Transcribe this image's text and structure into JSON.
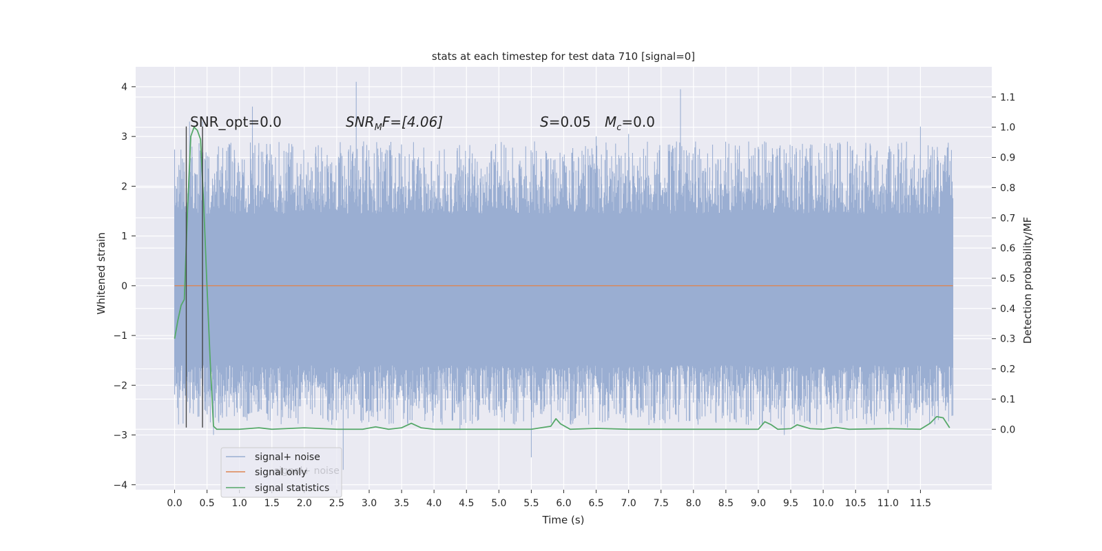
{
  "chart_data": {
    "type": "line",
    "title": "stats at each timestep for test data 710 [signal=0]",
    "xlabel": "Time (s)",
    "ylabel": "Whitened strain",
    "ylabel_right": "Detection probability/MF",
    "xlim": [
      -0.6,
      12.6
    ],
    "ylim": [
      -4.1,
      4.4
    ],
    "ylim_right": [
      -0.2,
      1.2
    ],
    "x_ticks": [
      0.0,
      0.5,
      1.0,
      1.5,
      2.0,
      2.5,
      3.0,
      3.5,
      4.0,
      4.5,
      5.0,
      5.5,
      6.0,
      6.5,
      7.0,
      7.5,
      8.0,
      8.5,
      9.0,
      9.5,
      10.0,
      10.5,
      11.0,
      11.5
    ],
    "x_tick_labels": [
      "0.0",
      "0.5",
      "1.0",
      "1.5",
      "2.0",
      "2.5",
      "3.0",
      "3.5",
      "4.0",
      "4.5",
      "5.0",
      "5.5",
      "6.0",
      "6.5",
      "7.0",
      "7.5",
      "8.0",
      "8.5",
      "9.0",
      "9.5",
      "10.0",
      "10.5",
      "11.0",
      "11.5"
    ],
    "y_ticks": [
      -4,
      -3,
      -2,
      -1,
      0,
      1,
      2,
      3,
      4
    ],
    "y_tick_labels": [
      "−4",
      "−3",
      "−2",
      "−1",
      "0",
      "1",
      "2",
      "3",
      "4"
    ],
    "y_right_ticks": [
      0.0,
      0.1,
      0.2,
      0.3,
      0.4,
      0.5,
      0.6,
      0.7,
      0.8,
      0.9,
      1.0,
      1.1
    ],
    "y_right_tick_labels": [
      "0.0",
      "0.1",
      "0.2",
      "0.3",
      "0.4",
      "0.5",
      "0.6",
      "0.7",
      "0.8",
      "0.9",
      "1.0",
      "1.1"
    ],
    "grid": true,
    "legend_position": "lower-left",
    "series": [
      {
        "name": "signal+ noise",
        "axis": "left",
        "color": "#9aaed2",
        "style": "noise band",
        "x_range": [
          0.0,
          12.0
        ],
        "envelope_core": [
          -1.6,
          1.45
        ],
        "envelope_typical": [
          -2.4,
          2.5
        ],
        "peaks": [
          {
            "x": 1.2,
            "y": 3.6
          },
          {
            "x": 2.8,
            "y": 4.1
          },
          {
            "x": 7.8,
            "y": 3.95
          },
          {
            "x": 0.43,
            "y": 3.3
          },
          {
            "x": 0.23,
            "y": 3.3
          },
          {
            "x": 11.5,
            "y": 3.2
          },
          {
            "x": 7.0,
            "y": 3.05
          },
          {
            "x": 5.55,
            "y": 2.9
          },
          {
            "x": 6.5,
            "y": 3.0
          },
          {
            "x": 2.6,
            "y": -3.7
          },
          {
            "x": 5.5,
            "y": -3.45
          },
          {
            "x": 9.4,
            "y": -3.0
          },
          {
            "x": 0.6,
            "y": -3.0
          },
          {
            "x": 11.3,
            "y": -2.85
          },
          {
            "x": 4.4,
            "y": -2.9
          }
        ]
      },
      {
        "name": "signal only",
        "axis": "left",
        "color": "#dd8452",
        "x": [
          0.0,
          12.0
        ],
        "y": [
          0.0,
          0.0
        ]
      },
      {
        "name": "signal statistics",
        "axis": "right",
        "color": "#55a868",
        "x": [
          0.0,
          0.05,
          0.1,
          0.15,
          0.2,
          0.25,
          0.3,
          0.35,
          0.4,
          0.45,
          0.5,
          0.55,
          0.6,
          0.65,
          0.75,
          1.0,
          1.3,
          1.5,
          2.0,
          2.5,
          2.9,
          3.1,
          3.3,
          3.5,
          3.65,
          3.8,
          4.0,
          4.5,
          5.0,
          5.5,
          5.8,
          5.88,
          5.95,
          6.1,
          6.5,
          7.0,
          8.0,
          9.0,
          9.1,
          9.2,
          9.3,
          9.5,
          9.6,
          9.8,
          10.0,
          10.2,
          10.4,
          11.0,
          11.5,
          11.65,
          11.75,
          11.85,
          11.95
        ],
        "y": [
          0.3,
          0.36,
          0.41,
          0.43,
          0.73,
          0.97,
          1.0,
          0.99,
          0.96,
          0.74,
          0.47,
          0.22,
          0.01,
          0.0,
          0.0,
          0.0,
          0.005,
          0.0,
          0.005,
          0.0,
          0.0,
          0.008,
          0.0,
          0.005,
          0.02,
          0.005,
          0.0,
          0.0,
          0.0,
          0.0,
          0.01,
          0.035,
          0.018,
          0.0,
          0.003,
          0.0,
          0.0,
          0.0,
          0.025,
          0.015,
          0.0,
          0.002,
          0.015,
          0.002,
          0.0,
          0.006,
          0.0,
          0.002,
          0.0,
          0.02,
          0.042,
          0.038,
          0.005
        ]
      }
    ],
    "vertical_lines": [
      {
        "x": 0.18,
        "y_top": 3.2,
        "y_bottom": -2.85,
        "color": "#444444"
      },
      {
        "x": 0.43,
        "y_top": 3.2,
        "y_bottom": -2.85,
        "color": "#444444"
      }
    ],
    "annotations": {
      "snr_opt": "SNR_opt=0.0",
      "snr_mf_main": "SNR",
      "snr_mf_sub": "M",
      "snr_mf_tail": "F=[4.06]",
      "s_label": "S",
      "s_value": "=0.05",
      "mc_main": "M",
      "mc_sub": "c",
      "mc_value": "=0.0"
    },
    "legend": {
      "items": [
        "signal+ noise",
        "signal only",
        "signal statistics"
      ],
      "ghost_text": "signal+ noise"
    }
  }
}
